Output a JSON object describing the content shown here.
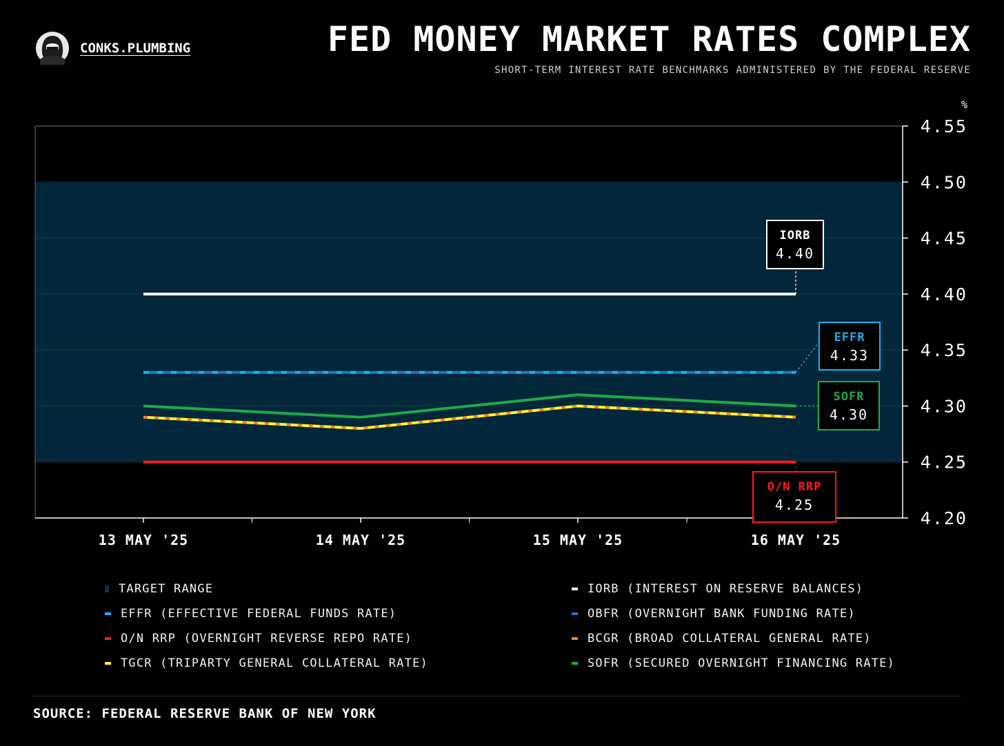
{
  "brand": {
    "name": "CONKS.PLUMBING",
    "avatar_icon": "hooded-figure-avatar"
  },
  "header": {
    "title": "FED MONEY MARKET RATES COMPLEX",
    "subtitle": "SHORT-TERM INTEREST RATE BENCHMARKS ADMINISTERED BY THE FEDERAL RESERVE"
  },
  "chart_data": {
    "type": "line",
    "categories": [
      "13 MAY '25",
      "14 MAY '25",
      "15 MAY '25",
      "16 MAY '25"
    ],
    "y_unit": "%",
    "ylim": [
      4.2,
      4.55
    ],
    "y_ticks": [
      "4.55",
      "4.50",
      "4.45",
      "4.40",
      "4.35",
      "4.30",
      "4.25",
      "4.20"
    ],
    "target_range": {
      "name": "TARGET RANGE",
      "low": 4.25,
      "high": 4.5,
      "color": "#02273a"
    },
    "series": [
      {
        "key": "iorb",
        "name": "IORB",
        "values": [
          4.4,
          4.4,
          4.4,
          4.4
        ],
        "color": "#ffffff"
      },
      {
        "key": "effr",
        "name": "EFFR",
        "values": [
          4.33,
          4.33,
          4.33,
          4.33
        ],
        "color": "#1ab2ee"
      },
      {
        "key": "obfr",
        "name": "OBFR",
        "values": [
          4.33,
          4.33,
          4.33,
          4.33
        ],
        "color": "#1f78c8"
      },
      {
        "key": "onrrp",
        "name": "O/N RRP",
        "values": [
          4.25,
          4.25,
          4.25,
          4.25
        ],
        "color": "#ff1a1a"
      },
      {
        "key": "bcgr",
        "name": "BCGR",
        "values": [
          4.29,
          4.28,
          4.3,
          4.29
        ],
        "color": "#f07f3a"
      },
      {
        "key": "tgcr",
        "name": "TGCR",
        "values": [
          4.29,
          4.28,
          4.3,
          4.29
        ],
        "color": "#ffff26"
      },
      {
        "key": "sofr",
        "name": "SOFR",
        "values": [
          4.3,
          4.29,
          4.31,
          4.3
        ],
        "color": "#1dab47"
      }
    ],
    "callouts": [
      {
        "series": "iorb",
        "label": "IORB",
        "value": "4.40",
        "color": "#ffffff"
      },
      {
        "series": "effr",
        "label": "EFFR",
        "value": "4.33",
        "color": "#1ab2ee"
      },
      {
        "series": "sofr",
        "label": "SOFR",
        "value": "4.30",
        "color": "#1dab47"
      },
      {
        "series": "onrrp",
        "label": "O/N RRP",
        "value": "4.25",
        "color": "#ff1a1a"
      }
    ],
    "grid": true
  },
  "legend": [
    {
      "key": "target",
      "label": "TARGET RANGE",
      "color": "#0b3247",
      "shape": "square"
    },
    {
      "key": "iorb",
      "label": "IORB (INTEREST ON RESERVE BALANCES)",
      "color": "#ffffff",
      "shape": "dash"
    },
    {
      "key": "effr",
      "label": "EFFR (EFFECTIVE FEDERAL FUNDS RATE)",
      "color": "#1ab2ee",
      "shape": "dash"
    },
    {
      "key": "obfr",
      "label": "OBFR (OVERNIGHT BANK FUNDING RATE)",
      "color": "#1f78c8",
      "shape": "dash"
    },
    {
      "key": "onrrp",
      "label": "O/N RRP (OVERNIGHT REVERSE REPO RATE)",
      "color": "#ff1a1a",
      "shape": "dash"
    },
    {
      "key": "bcgr",
      "label": "BCGR (BROAD COLLATERAL GENERAL RATE)",
      "color": "#f07f3a",
      "shape": "dash"
    },
    {
      "key": "tgcr",
      "label": "TGCR (TRIPARTY GENERAL COLLATERAL RATE)",
      "color": "#ffff26",
      "shape": "dash"
    },
    {
      "key": "sofr",
      "label": "SOFR (SECURED OVERNIGHT FINANCING RATE)",
      "color": "#1dab47",
      "shape": "dash"
    }
  ],
  "source": "SOURCE: FEDERAL RESERVE BANK OF NEW YORK"
}
